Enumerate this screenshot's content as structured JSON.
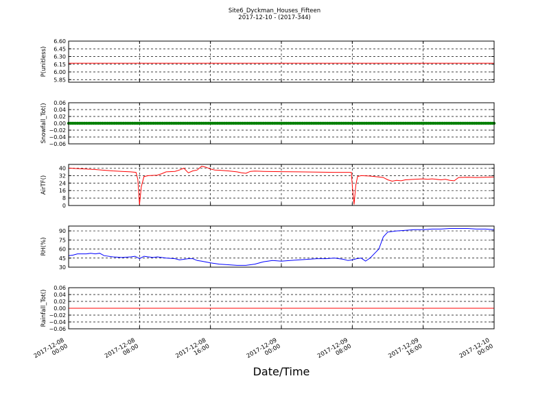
{
  "title": "Site6_Dyckman_Houses_Fifteen",
  "subtitle": "2017-12-10 - (2017-344)",
  "xlabel": "Date/Time",
  "chart_data": {
    "type": "line",
    "x_ticks": [
      {
        "t": 0,
        "l1": "2017-12-08",
        "l2": "00:00"
      },
      {
        "t": 8,
        "l1": "2017-12-08",
        "l2": "08:00"
      },
      {
        "t": 16,
        "l1": "2017-12-08",
        "l2": "16:00"
      },
      {
        "t": 24,
        "l1": "2017-12-09",
        "l2": "00:00"
      },
      {
        "t": 32,
        "l1": "2017-12-09",
        "l2": "08:00"
      },
      {
        "t": 40,
        "l1": "2017-12-09",
        "l2": "16:00"
      },
      {
        "t": 48,
        "l1": "2017-12-10",
        "l2": "00:00"
      }
    ],
    "x_range_hours": [
      0,
      48
    ],
    "grid": true,
    "panels": [
      {
        "ylabel": "P(unitless)",
        "ylim": [
          5.8,
          6.6
        ],
        "yticks": [
          "6.60",
          "6.45",
          "6.30",
          "6.15",
          "6.00",
          "5.85"
        ],
        "ytick_values": [
          6.6,
          6.45,
          6.3,
          6.15,
          6.0,
          5.85
        ],
        "series": [
          {
            "color": "#ff0000",
            "style": "line",
            "points": [
              [
                0,
                6.17
              ],
              [
                48,
                6.17
              ]
            ]
          }
        ]
      },
      {
        "ylabel": "Snowfall_Tot()",
        "ylim": [
          -0.06,
          0.06
        ],
        "yticks": [
          "0.06",
          "0.04",
          "0.02",
          "0.00",
          "−0.02",
          "−0.04",
          "−0.06"
        ],
        "ytick_values": [
          0.06,
          0.04,
          0.02,
          0.0,
          -0.02,
          -0.04,
          -0.06
        ],
        "series": [
          {
            "color": "#007f00",
            "style": "markers",
            "points": [
              [
                0,
                0.0
              ],
              [
                48,
                0.0
              ]
            ]
          }
        ]
      },
      {
        "ylabel": "AirTF()",
        "ylim": [
          0,
          44
        ],
        "yticks": [
          "40",
          "32",
          "24",
          "16",
          "8",
          "0"
        ],
        "ytick_values": [
          40,
          32,
          24,
          16,
          8,
          0
        ],
        "series": [
          {
            "color": "#ff0000",
            "style": "line",
            "points": [
              [
                0,
                40
              ],
              [
                1,
                39.5
              ],
              [
                2,
                39
              ],
              [
                3,
                38.5
              ],
              [
                4,
                37.8
              ],
              [
                5,
                37
              ],
              [
                6,
                36.5
              ],
              [
                7,
                36
              ],
              [
                7.6,
                35.5
              ],
              [
                7.8,
                28
              ],
              [
                8.0,
                1
              ],
              [
                8.2,
                20
              ],
              [
                8.5,
                31
              ],
              [
                9,
                32
              ],
              [
                10,
                32.5
              ],
              [
                10.5,
                34
              ],
              [
                11,
                36
              ],
              [
                12,
                36.5
              ],
              [
                12.5,
                38
              ],
              [
                13,
                40
              ],
              [
                13.5,
                35
              ],
              [
                14,
                37
              ],
              [
                14.5,
                38
              ],
              [
                15,
                42
              ],
              [
                15.5,
                41
              ],
              [
                16,
                39
              ],
              [
                16.5,
                38
              ],
              [
                17,
                37.8
              ],
              [
                18,
                37
              ],
              [
                19,
                36
              ],
              [
                19.5,
                35
              ],
              [
                20,
                34.5
              ],
              [
                20.5,
                36.5
              ],
              [
                21,
                36.8
              ],
              [
                22,
                36.5
              ],
              [
                24,
                36.2
              ],
              [
                26,
                36
              ],
              [
                28,
                35.8
              ],
              [
                30,
                35.5
              ],
              [
                31.9,
                35.5
              ],
              [
                32.0,
                22
              ],
              [
                32.2,
                1
              ],
              [
                32.4,
                22
              ],
              [
                32.6,
                31
              ],
              [
                33,
                32
              ],
              [
                34,
                31.5
              ],
              [
                35,
                30.5
              ],
              [
                35.5,
                30
              ],
              [
                36,
                27.5
              ],
              [
                36.5,
                26
              ],
              [
                37,
                27
              ],
              [
                37.5,
                26.5
              ],
              [
                38,
                27.5
              ],
              [
                39,
                28
              ],
              [
                40,
                28.5
              ],
              [
                40.5,
                28
              ],
              [
                41,
                28.5
              ],
              [
                42,
                27.5
              ],
              [
                42.5,
                28
              ],
              [
                43,
                27
              ],
              [
                43.5,
                26.5
              ],
              [
                44,
                30
              ],
              [
                45,
                30.2
              ],
              [
                46,
                30
              ],
              [
                47,
                30.3
              ],
              [
                48,
                30.5
              ]
            ]
          }
        ]
      },
      {
        "ylabel": "RH(%)",
        "ylim": [
          30,
          98
        ],
        "yticks": [
          "90",
          "75",
          "60",
          "45",
          "30"
        ],
        "ytick_values": [
          90,
          75,
          60,
          45,
          30
        ],
        "series": [
          {
            "color": "#0000ff",
            "style": "line",
            "points": [
              [
                0,
                49
              ],
              [
                0.5,
                50
              ],
              [
                1,
                52
              ],
              [
                2,
                52
              ],
              [
                2.5,
                53
              ],
              [
                3,
                52
              ],
              [
                3.5,
                53
              ],
              [
                4,
                49
              ],
              [
                5,
                47
              ],
              [
                6,
                46
              ],
              [
                7,
                47
              ],
              [
                7.5,
                48
              ],
              [
                8,
                44
              ],
              [
                8.5,
                48
              ],
              [
                9,
                47
              ],
              [
                9.5,
                46
              ],
              [
                10,
                47
              ],
              [
                11,
                45
              ],
              [
                12,
                44
              ],
              [
                12.5,
                42
              ],
              [
                13,
                43
              ],
              [
                13.5,
                44
              ],
              [
                14,
                44
              ],
              [
                14.5,
                41
              ],
              [
                15,
                40
              ],
              [
                16,
                37
              ],
              [
                17,
                35
              ],
              [
                18,
                34
              ],
              [
                19,
                33
              ],
              [
                20,
                33
              ],
              [
                21,
                35
              ],
              [
                22,
                39
              ],
              [
                23,
                41
              ],
              [
                24,
                40
              ],
              [
                25,
                41
              ],
              [
                26,
                42
              ],
              [
                27,
                43
              ],
              [
                28,
                44
              ],
              [
                29,
                44
              ],
              [
                30,
                45
              ],
              [
                31,
                43
              ],
              [
                31.5,
                41
              ],
              [
                32,
                42
              ],
              [
                32.5,
                44
              ],
              [
                33,
                45
              ],
              [
                33.5,
                40
              ],
              [
                34,
                45
              ],
              [
                35,
                60
              ],
              [
                35.5,
                80
              ],
              [
                36,
                88
              ],
              [
                37,
                90
              ],
              [
                38,
                91
              ],
              [
                39,
                92
              ],
              [
                40,
                92
              ],
              [
                41,
                93
              ],
              [
                42,
                93
              ],
              [
                43,
                94
              ],
              [
                44,
                94
              ],
              [
                45,
                94
              ],
              [
                46,
                93
              ],
              [
                47,
                93
              ],
              [
                48,
                92
              ]
            ]
          }
        ]
      },
      {
        "ylabel": "Rainfall_Tot()",
        "ylim": [
          -0.06,
          0.06
        ],
        "yticks": [
          "0.06",
          "0.04",
          "0.02",
          "0.00",
          "−0.02",
          "−0.04",
          "−0.06"
        ],
        "ytick_values": [
          0.06,
          0.04,
          0.02,
          0.0,
          -0.02,
          -0.04,
          -0.06
        ],
        "series": [
          {
            "color": "#ff0000",
            "style": "line",
            "points": [
              [
                0,
                0.0
              ],
              [
                48,
                0.0
              ]
            ]
          }
        ]
      }
    ]
  }
}
